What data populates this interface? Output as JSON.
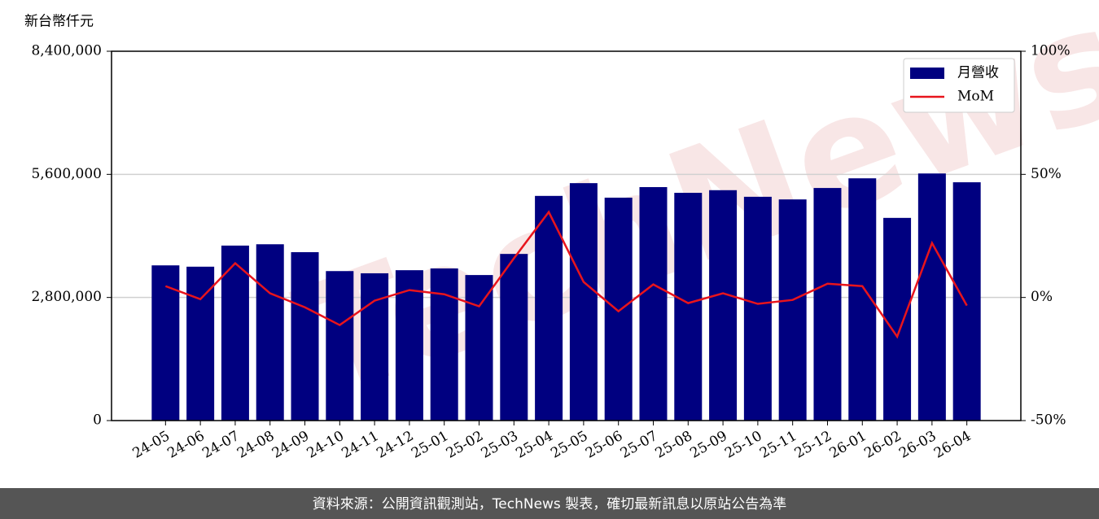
{
  "chart_data": {
    "type": "bar_line",
    "y_label": "新台幣仟元",
    "watermark": "TechNews",
    "footer": "資料來源：公開資訊觀測站，TechNews 製表，確切最新訊息以原站公告為準",
    "categories": [
      "24-05",
      "24-06",
      "24-07",
      "24-08",
      "24-09",
      "24-10",
      "24-11",
      "24-12",
      "25-01",
      "25-02",
      "25-03",
      "25-04",
      "25-05",
      "25-06",
      "25-07",
      "25-08",
      "25-09",
      "25-10",
      "25-11",
      "25-12",
      "26-01",
      "26-02",
      "26-03",
      "26-04"
    ],
    "series": [
      {
        "name": "月營收",
        "color": "#000080",
        "type": "bar",
        "values": [
          3530000,
          3500000,
          3980000,
          4010000,
          3830000,
          3400000,
          3350000,
          3420000,
          3460000,
          3310000,
          3790000,
          5110000,
          5400000,
          5070000,
          5310000,
          5180000,
          5240000,
          5090000,
          5030000,
          5290000,
          5510000,
          4610000,
          5620000,
          5420000
        ]
      },
      {
        "name": "MoM",
        "color": "#e8141c",
        "type": "line",
        "axis": "y2",
        "values": [
          4.6,
          -0.7,
          13.9,
          1.7,
          -4.0,
          -11.2,
          -1.3,
          3.0,
          1.3,
          -3.6,
          15.9,
          34.7,
          6.3,
          -5.6,
          5.3,
          -2.3,
          1.7,
          -2.6,
          -1.0,
          5.6,
          4.6,
          -15.9,
          22.1,
          -3.3
        ]
      }
    ],
    "ylim": [
      0,
      8400000
    ],
    "yticks": [
      0,
      {
        "value": 2800000,
        "label": "2,800,000"
      },
      {
        "value": 5600000,
        "label": "5,600,000"
      },
      {
        "value": 8400000,
        "label": "8,400,000"
      }
    ],
    "y2lim": [
      -50,
      100
    ],
    "y2ticks": [
      {
        "value": -50,
        "label": "-50%"
      },
      {
        "value": 0,
        "label": "0%"
      },
      {
        "value": 50,
        "label": "50%"
      },
      {
        "value": 100,
        "label": "100%"
      }
    ],
    "grid": true,
    "legend": "upper right"
  }
}
